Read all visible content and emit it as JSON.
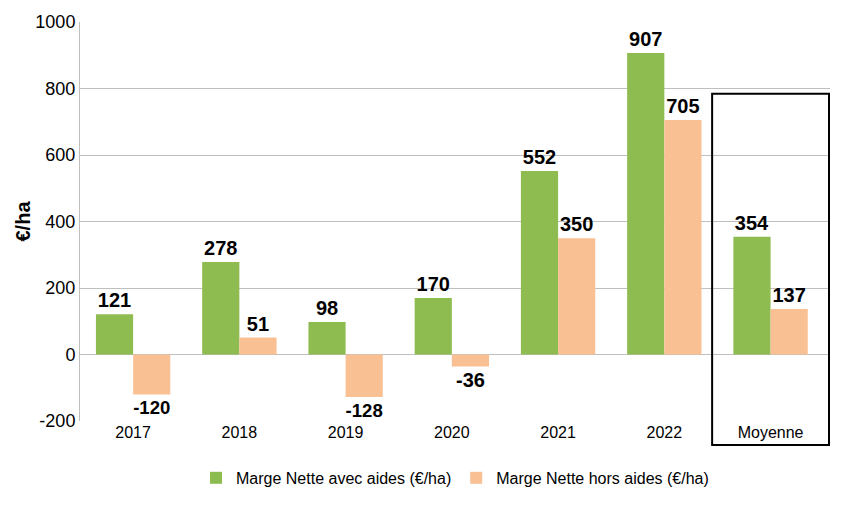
{
  "chart_data": {
    "type": "bar",
    "y_label": "€/ha",
    "categories": [
      "2017",
      "2018",
      "2019",
      "2020",
      "2021",
      "2022",
      "Moyenne"
    ],
    "series": [
      {
        "name": "Marge Nette avec aides (€/ha)",
        "color": "#8fbc50",
        "values": [
          121,
          278,
          98,
          170,
          552,
          907,
          354
        ]
      },
      {
        "name": "Marge Nette hors aides (€/ha)",
        "color": "#f9c094",
        "values": [
          -120,
          51,
          -128,
          -36,
          350,
          705,
          137
        ]
      }
    ],
    "ylim": [
      -200,
      1000
    ],
    "yticks": [
      -200,
      0,
      200,
      400,
      600,
      800,
      1000
    ],
    "grid": true,
    "legend": "bottom",
    "data_labels": true
  }
}
